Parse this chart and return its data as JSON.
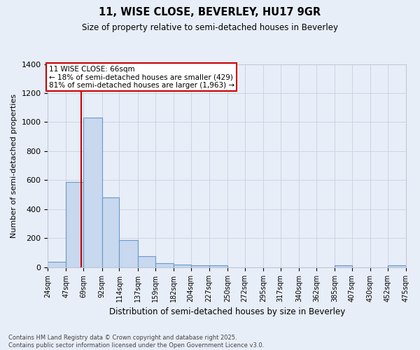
{
  "title": "11, WISE CLOSE, BEVERLEY, HU17 9GR",
  "subtitle": "Size of property relative to semi-detached houses in Beverley",
  "xlabel": "Distribution of semi-detached houses by size in Beverley",
  "ylabel": "Number of semi-detached properties",
  "property_size": 66,
  "annotation_line1": "11 WISE CLOSE: 66sqm",
  "annotation_line2": "← 18% of semi-detached houses are smaller (429)",
  "annotation_line3": "81% of semi-detached houses are larger (1,963) →",
  "footer1": "Contains HM Land Registry data © Crown copyright and database right 2025.",
  "footer2": "Contains public sector information licensed under the Open Government Licence v3.0.",
  "bar_edges": [
    24,
    47,
    69,
    92,
    114,
    137,
    159,
    182,
    204,
    227,
    250,
    272,
    295,
    317,
    340,
    362,
    385,
    407,
    430,
    452,
    475
  ],
  "bar_heights": [
    40,
    590,
    1030,
    480,
    190,
    75,
    30,
    20,
    15,
    15,
    0,
    0,
    0,
    0,
    0,
    0,
    15,
    0,
    0,
    15
  ],
  "bar_color": "#c8d8ee",
  "bar_edge_color": "#6699cc",
  "line_color": "#cc0000",
  "background_color": "#e8eef8",
  "plot_bg_color": "#e8eef8",
  "ylim": [
    0,
    1400
  ],
  "grid_color": "#c8cfe0"
}
